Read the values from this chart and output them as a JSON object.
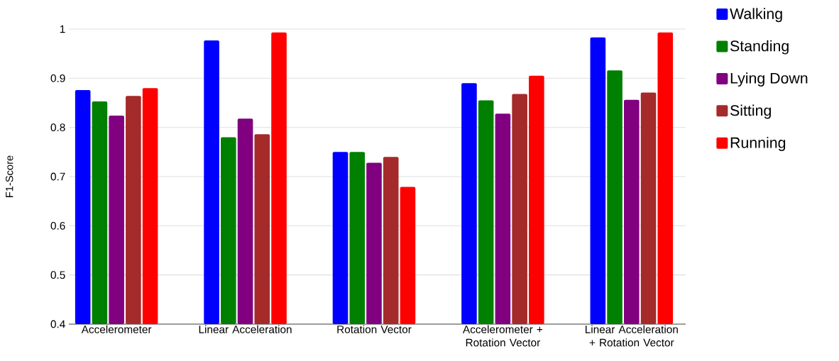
{
  "chart_data": {
    "type": "bar",
    "ylabel": "F1-Score",
    "categories": [
      "Accelerometer",
      "Linear Acceleration",
      "Rotation Vector",
      "Accelerometer + Rotation Vector",
      "Linear Acceleration + Rotation Vector"
    ],
    "series": [
      {
        "name": "Walking",
        "color": "#0000ff",
        "values": [
          0.876,
          0.977,
          0.75,
          0.89,
          0.983
        ]
      },
      {
        "name": "Standing",
        "color": "#008000",
        "values": [
          0.853,
          0.78,
          0.75,
          0.855,
          0.916
        ]
      },
      {
        "name": "Lying Down",
        "color": "#800080",
        "values": [
          0.824,
          0.818,
          0.728,
          0.828,
          0.856
        ]
      },
      {
        "name": "Sitting",
        "color": "#a52a2a",
        "values": [
          0.864,
          0.786,
          0.74,
          0.868,
          0.871
        ]
      },
      {
        "name": "Running",
        "color": "#ff0000",
        "values": [
          0.88,
          0.993,
          0.679,
          0.905,
          0.993
        ]
      }
    ],
    "ylim": [
      0.4,
      1
    ],
    "yticks": [
      0.4,
      0.5,
      0.6,
      0.7,
      0.8,
      0.9,
      1
    ],
    "grid": "y",
    "legend": "top right"
  }
}
